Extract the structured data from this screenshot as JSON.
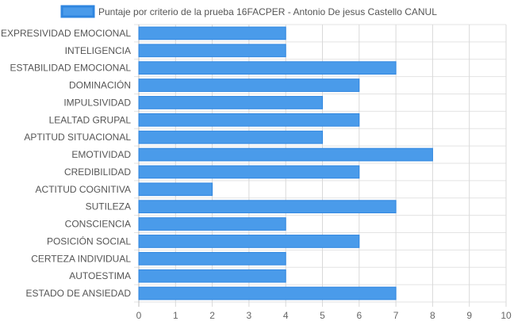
{
  "chart_data": {
    "type": "bar",
    "orientation": "horizontal",
    "categories": [
      "EXPRESIVIDAD EMOCIONAL",
      "INTELIGENCIA",
      "ESTABILIDAD EMOCIONAL",
      "DOMINACIÓN",
      "IMPULSIVIDAD",
      "LEALTAD GRUPAL",
      "APTITUD SITUACIONAL",
      "EMOTIVIDAD",
      "CREDIBILIDAD",
      "ACTITUD COGNITIVA",
      "SUTILEZA",
      "CONSCIENCIA",
      "POSICIÓN SOCIAL",
      "CERTEZA INDIVIDUAL",
      "AUTOESTIMA",
      "ESTADO DE ANSIEDAD"
    ],
    "series": [
      {
        "name": "Puntaje por criterio de la prueba 16FACPER - Antonio De jesus Castello CANUL",
        "values": [
          4,
          4,
          7,
          6,
          5,
          6,
          5,
          8,
          6,
          2,
          7,
          4,
          6,
          4,
          4,
          7
        ],
        "color": "#4a9bea",
        "border_color": "#2f86e0"
      }
    ],
    "xlim": [
      0,
      10
    ],
    "x_ticks": [
      "0",
      "1",
      "2",
      "3",
      "4",
      "5",
      "6",
      "7",
      "8",
      "9",
      "10"
    ],
    "grid": true,
    "legend_position": "top"
  }
}
